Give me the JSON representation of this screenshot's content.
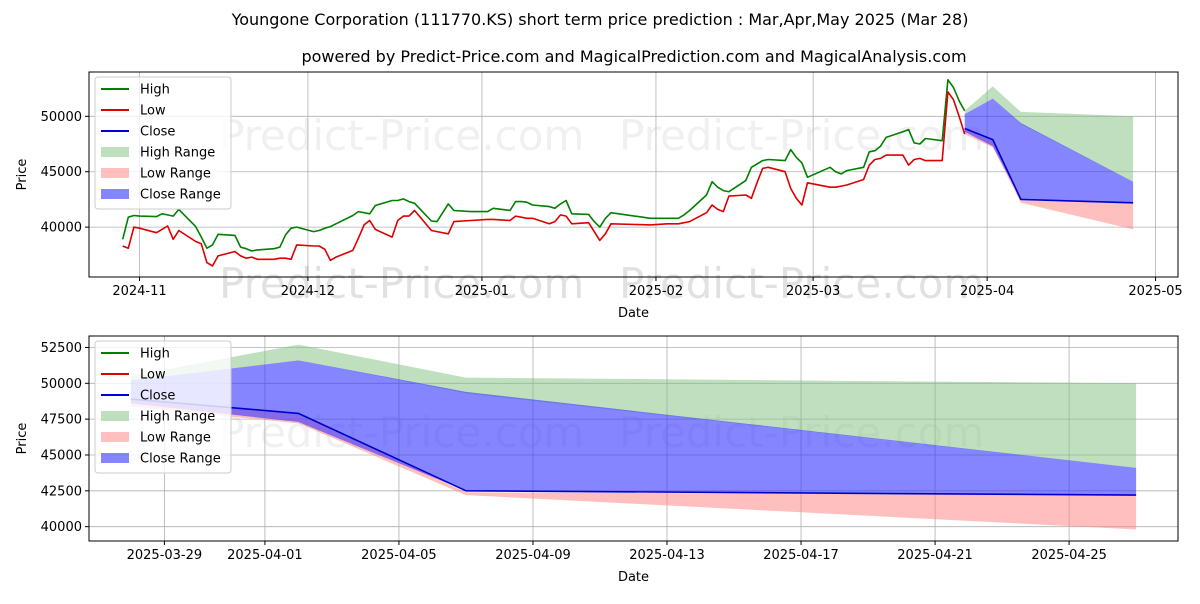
{
  "chart_data": {
    "title": "Youngone Corporation (111770.KS) short term price prediction : Mar,Apr,May 2025 (Mar 28)",
    "subtitle": "powered by Predict-Price.com and MagicalPrediction.com and MagicalAnalysis.com",
    "watermark": "Predict-Price.com",
    "colors": {
      "high": "#008000",
      "low": "#dd0000",
      "close": "#0000cc",
      "high_range": "#7fbf7f",
      "low_range": "#ff8080",
      "close_range": "#3333ff"
    },
    "panels": [
      {
        "type": "line",
        "xlabel": "Date",
        "ylabel": "Price",
        "xlim": [
          "2024-10-23",
          "2025-05-05"
        ],
        "ylim": [
          35500,
          54000
        ],
        "xticks": [
          "2024-11-01",
          "2024-12-01",
          "2025-01-01",
          "2025-02-01",
          "2025-03-01",
          "2025-04-01",
          "2025-05-01"
        ],
        "xtick_labels": [
          "2024-11",
          "2024-12",
          "2025-01",
          "2025-02",
          "2025-03",
          "2025-04",
          "2025-05"
        ],
        "yticks": [
          40000,
          45000,
          50000
        ],
        "ytick_labels": [
          "40000",
          "45000",
          "50000"
        ],
        "grid": true,
        "legend": "top-left",
        "legend_entries": [
          "High",
          "Low",
          "Close",
          "High Range",
          "Low Range",
          "Close Range"
        ],
        "dates": [
          "2024-10-29",
          "2024-10-30",
          "2024-10-31",
          "2024-11-01",
          "2024-11-04",
          "2024-11-05",
          "2024-11-06",
          "2024-11-07",
          "2024-11-08",
          "2024-11-11",
          "2024-11-12",
          "2024-11-13",
          "2024-11-14",
          "2024-11-15",
          "2024-11-18",
          "2024-11-19",
          "2024-11-20",
          "2024-11-21",
          "2024-11-22",
          "2024-11-25",
          "2024-11-26",
          "2024-11-27",
          "2024-11-28",
          "2024-11-29",
          "2024-12-02",
          "2024-12-03",
          "2024-12-04",
          "2024-12-05",
          "2024-12-06",
          "2024-12-09",
          "2024-12-10",
          "2024-12-11",
          "2024-12-12",
          "2024-12-13",
          "2024-12-16",
          "2024-12-17",
          "2024-12-18",
          "2024-12-19",
          "2024-12-20",
          "2024-12-23",
          "2024-12-24",
          "2024-12-26",
          "2024-12-27",
          "2024-12-30",
          "2025-01-02",
          "2025-01-03",
          "2025-01-06",
          "2025-01-07",
          "2025-01-08",
          "2025-01-09",
          "2025-01-10",
          "2025-01-13",
          "2025-01-14",
          "2025-01-15",
          "2025-01-16",
          "2025-01-17",
          "2025-01-20",
          "2025-01-21",
          "2025-01-22",
          "2025-01-23",
          "2025-01-24",
          "2025-01-31",
          "2025-02-03",
          "2025-02-04",
          "2025-02-05",
          "2025-02-06",
          "2025-02-07",
          "2025-02-10",
          "2025-02-11",
          "2025-02-12",
          "2025-02-13",
          "2025-02-14",
          "2025-02-17",
          "2025-02-18",
          "2025-02-19",
          "2025-02-20",
          "2025-02-21",
          "2025-02-24",
          "2025-02-25",
          "2025-02-26",
          "2025-02-27",
          "2025-02-28",
          "2025-03-04",
          "2025-03-05",
          "2025-03-06",
          "2025-03-07",
          "2025-03-10",
          "2025-03-11",
          "2025-03-12",
          "2025-03-13",
          "2025-03-14",
          "2025-03-17",
          "2025-03-18",
          "2025-03-19",
          "2025-03-20",
          "2025-03-21",
          "2025-03-24",
          "2025-03-25",
          "2025-03-26",
          "2025-03-27",
          "2025-03-28"
        ],
        "high": [
          38900,
          40900,
          41050,
          41000,
          40950,
          41200,
          41100,
          41000,
          41600,
          40050,
          39100,
          38100,
          38400,
          39350,
          39250,
          38200,
          38050,
          37850,
          37950,
          38050,
          38200,
          39300,
          39900,
          40000,
          39600,
          39700,
          39900,
          40050,
          40300,
          41050,
          41400,
          41300,
          41200,
          41950,
          42400,
          42400,
          42550,
          42300,
          42150,
          40550,
          40500,
          42100,
          41500,
          41400,
          41400,
          41700,
          41500,
          42300,
          42300,
          42250,
          42000,
          41850,
          41700,
          42100,
          42400,
          41200,
          41150,
          40500,
          40000,
          40800,
          41300,
          40800,
          40800,
          40800,
          40800,
          41100,
          41500,
          42900,
          44100,
          43600,
          43300,
          43200,
          44200,
          45400,
          45700,
          46000,
          46100,
          46000,
          47000,
          46300,
          45800,
          44500,
          45400,
          45000,
          44800,
          45100,
          45400,
          46800,
          46900,
          47300,
          48100,
          48600,
          48800,
          47600,
          47500,
          48000,
          47800,
          53300,
          52600,
          51400,
          50500
        ],
        "low": [
          38300,
          38100,
          40000,
          39900,
          39500,
          39800,
          40100,
          38900,
          39700,
          38700,
          38500,
          36800,
          36500,
          37400,
          37800,
          37400,
          37200,
          37300,
          37100,
          37100,
          37200,
          37200,
          37100,
          38400,
          38300,
          38300,
          38000,
          37000,
          37300,
          37900,
          39000,
          40200,
          40600,
          39800,
          39100,
          40600,
          41000,
          41000,
          41500,
          39700,
          39600,
          39400,
          40500,
          40600,
          40700,
          40700,
          40600,
          41000,
          40900,
          40800,
          40800,
          40300,
          40500,
          41100,
          41000,
          40300,
          40400,
          39600,
          38800,
          39400,
          40300,
          40200,
          40300,
          40300,
          40300,
          40400,
          40500,
          41300,
          42000,
          41600,
          41400,
          42800,
          42900,
          42600,
          44000,
          45300,
          45400,
          45000,
          43500,
          42600,
          42000,
          44000,
          43600,
          43600,
          43700,
          43800,
          44300,
          45600,
          46100,
          46200,
          46500,
          46500,
          45600,
          46100,
          46200,
          46000,
          46000,
          52200,
          51500,
          50000,
          48400
        ]
      },
      {
        "type": "area",
        "xlabel": "Date",
        "ylabel": "Price",
        "xlim": [
          "2025-03-26T18:00",
          "2025-04-28T06:00"
        ],
        "ylim": [
          39000,
          53300
        ],
        "xticks": [
          "2025-03-29",
          "2025-04-01",
          "2025-04-05",
          "2025-04-09",
          "2025-04-13",
          "2025-04-17",
          "2025-04-21",
          "2025-04-25"
        ],
        "xtick_labels": [
          "2025-03-29",
          "2025-04-01",
          "2025-04-05",
          "2025-04-09",
          "2025-04-13",
          "2025-04-17",
          "2025-04-21",
          "2025-04-25"
        ],
        "yticks": [
          40000,
          42500,
          45000,
          47500,
          50000,
          52500
        ],
        "ytick_labels": [
          "40000",
          "42500",
          "45000",
          "47500",
          "50000",
          "52500"
        ],
        "grid": true,
        "legend": "top-left",
        "legend_entries": [
          "High",
          "Low",
          "Close",
          "High Range",
          "Low Range",
          "Close Range"
        ]
      }
    ],
    "forecast": {
      "dates": [
        "2025-03-28",
        "2025-04-02",
        "2025-04-07",
        "2025-04-27"
      ],
      "close": [
        48900,
        47900,
        42500,
        42200
      ],
      "high_range_upper": [
        50500,
        52700,
        50400,
        50000
      ],
      "high_range_lower": [
        50200,
        51600,
        49300,
        44100
      ],
      "low_range_upper": [
        48900,
        47900,
        42400,
        42200
      ],
      "low_range_lower": [
        48400,
        47200,
        42200,
        39800
      ],
      "close_range_upper": [
        50200,
        51600,
        49400,
        44100
      ],
      "close_range_lower": [
        48600,
        47300,
        42500,
        42200
      ]
    }
  }
}
